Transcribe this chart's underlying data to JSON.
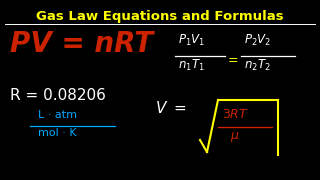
{
  "bg_color": "#000000",
  "title": "Gas Law Equations and Formulas",
  "title_color": "#FFFF00",
  "title_fontsize": 9.5,
  "line_color": "#FFFFFF",
  "pv_nrt_color": "#CC2200",
  "pv_text": "PV = nRT",
  "r_color": "#FFFFFF",
  "r_text": "R = 0.08206",
  "r_fontsize": 11,
  "units_color": "#00AAFF",
  "units_num": "L · atm",
  "units_den": "mol · K",
  "units_fontsize": 8,
  "combined_color": "#FFFFFF",
  "combined_fontsize": 8.5,
  "rms_color": "#FFFFFF",
  "rms_fontsize": 11,
  "sqrt_color": "#FFFF00",
  "sqrt_inner_color": "#CC2200"
}
